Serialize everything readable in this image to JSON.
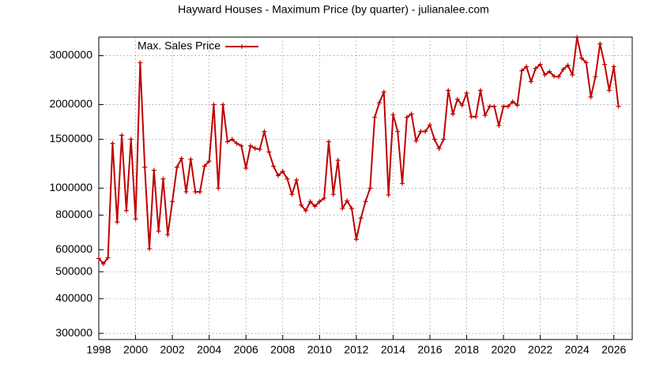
{
  "chart_data": {
    "type": "line",
    "title": "Hayward Houses - Maximum Price (by quarter) - julianalee.com",
    "log_y": true,
    "grid": true,
    "legend": "top-left",
    "xlim": [
      1998,
      2027
    ],
    "xticks": [
      1998,
      2000,
      2002,
      2004,
      2006,
      2008,
      2010,
      2012,
      2014,
      2016,
      2018,
      2020,
      2022,
      2024,
      2026
    ],
    "ylim": [
      285000,
      3500000
    ],
    "yticks": [
      300000,
      400000,
      500000,
      600000,
      800000,
      1000000,
      1500000,
      2000000,
      3000000
    ],
    "x": [
      1998,
      1998.25,
      1998.5,
      1998.75,
      1999,
      1999.25,
      1999.5,
      1999.75,
      2000,
      2000.25,
      2000.5,
      2000.75,
      2001,
      2001.25,
      2001.5,
      2001.75,
      2002,
      2002.25,
      2002.5,
      2002.75,
      2003,
      2003.25,
      2003.5,
      2003.75,
      2004,
      2004.25,
      2004.5,
      2004.75,
      2005,
      2005.25,
      2005.5,
      2005.75,
      2006,
      2006.25,
      2006.5,
      2006.75,
      2007,
      2007.25,
      2007.5,
      2007.75,
      2008,
      2008.25,
      2008.5,
      2008.75,
      2009,
      2009.25,
      2009.5,
      2009.75,
      2010,
      2010.25,
      2010.5,
      2010.75,
      2011,
      2011.25,
      2011.5,
      2011.75,
      2012,
      2012.25,
      2012.5,
      2012.75,
      2013,
      2013.25,
      2013.5,
      2013.75,
      2014,
      2014.25,
      2014.5,
      2014.75,
      2015,
      2015.25,
      2015.5,
      2015.75,
      2016,
      2016.25,
      2016.5,
      2016.75,
      2017,
      2017.25,
      2017.5,
      2017.75,
      2018,
      2018.25,
      2018.5,
      2018.75,
      2019,
      2019.25,
      2019.5,
      2019.75,
      2020,
      2020.25,
      2020.5,
      2020.75,
      2021,
      2021.25,
      2021.5,
      2021.75,
      2022,
      2022.25,
      2022.5,
      2022.75,
      2023,
      2023.25,
      2023.5,
      2023.75,
      2024,
      2024.25,
      2024.5,
      2024.75,
      2025,
      2025.25,
      2025.5,
      2025.75,
      2026,
      2026.25
    ],
    "series": [
      {
        "name": "Max. Sales Price",
        "color": "#c00000",
        "values": [
          558000,
          534000,
          562000,
          1450000,
          755000,
          1550000,
          830000,
          1500000,
          775000,
          2830000,
          1190000,
          605000,
          1160000,
          700000,
          1080000,
          680000,
          895000,
          1190000,
          1280000,
          970000,
          1270000,
          970000,
          970000,
          1200000,
          1250000,
          2000000,
          1000000,
          2000000,
          1470000,
          1500000,
          1450000,
          1420000,
          1180000,
          1420000,
          1390000,
          1380000,
          1600000,
          1350000,
          1200000,
          1110000,
          1150000,
          1080000,
          950000,
          1070000,
          870000,
          830000,
          895000,
          860000,
          895000,
          920000,
          1470000,
          950000,
          1260000,
          845000,
          900000,
          845000,
          654000,
          780000,
          895000,
          1000000,
          1800000,
          2030000,
          2220000,
          945000,
          1840000,
          1600000,
          1040000,
          1800000,
          1850000,
          1480000,
          1600000,
          1600000,
          1690000,
          1500000,
          1390000,
          1500000,
          2250000,
          1850000,
          2090000,
          1990000,
          2200000,
          1810000,
          1810000,
          2250000,
          1830000,
          1970000,
          1970000,
          1680000,
          1970000,
          1970000,
          2050000,
          1990000,
          2650000,
          2740000,
          2420000,
          2700000,
          2790000,
          2560000,
          2630000,
          2530000,
          2520000,
          2680000,
          2770000,
          2560000,
          3490000,
          2940000,
          2830000,
          2130000,
          2520000,
          3310000,
          2790000,
          2250000,
          2740000,
          1970000
        ]
      }
    ]
  }
}
